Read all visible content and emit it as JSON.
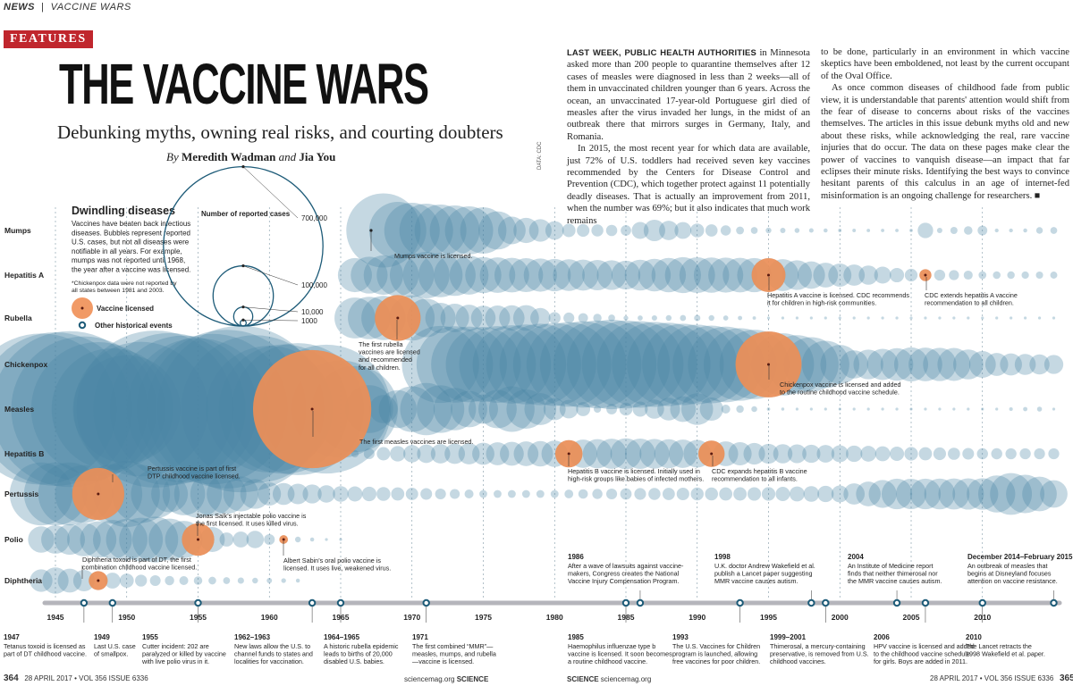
{
  "page": {
    "section_label": "NEWS",
    "section_name": "VACCINE WARS",
    "badge": "FEATURES",
    "title": "THE VACCINE WARS",
    "subtitle": "Debunking myths, owning real risks, and courting doubters",
    "byline_by": "By",
    "byline_author1": "Meredith Wadman",
    "byline_and": "and",
    "byline_author2": "Jia You",
    "data_credit": "DATA: CDC"
  },
  "intro": {
    "col1_lead": "LAST WEEK, PUBLIC HEALTH AUTHORITIES",
    "col1_p1": " in Minnesota asked more than 200 people to quarantine themselves after 12 cases of measles were diagnosed in less than 2 weeks—all of them in unvaccinated children younger than 6 years. Across the ocean, an unvaccinated 17-year-old Portuguese girl died of measles after the virus invaded her lungs, in the midst of an outbreak there that mirrors surges in Germany, Italy, and Romania.",
    "col1_p2": "In 2015, the most recent year for which data are available, just 72% of U.S. toddlers had received seven key vaccines recommended by the Centers for Disease Control and Prevention (CDC), which together protect against 11 potentially deadly diseases. That is actually an improvement from 2011, when the number was 69%; but it also indicates that much work remains",
    "col2_p1": "to be done, particularly in an environment in which vaccine skeptics have been emboldened, not least by the current occupant of the Oval Office.",
    "col2_p2": "As once common diseases of childhood fade from public view, it is understandable that parents' attention would shift from the fear of disease to concerns about risks of the vaccines themselves. The articles in this issue debunk myths old and new about these risks, while acknowledging the real, rare vaccine injuries that do occur. The data on these pages make clear the power of vaccines to vanquish disease—an impact that far eclipses their minute risks. Identifying the best ways to convince hesitant parents of this calculus in an age of internet-fed misinformation is an ongoing challenge for researchers. ■"
  },
  "legend": {
    "title": "Dwindling diseases",
    "desc": [
      "Vaccines have beaten back infectious",
      "diseases. Bubbles represent reported",
      "U.S. cases, but not all diseases were",
      "notifiable in all years. For example,",
      "mumps was not reported until 1968,",
      "the year after a vaccine was licensed."
    ],
    "footnote": [
      "*Chickenpox data were not reported by",
      "all states between 1981 and 2003."
    ],
    "vaccine_label": "Vaccine licensed",
    "event_label": "Other historical events",
    "size_title": "Number of reported cases",
    "size_values": [
      {
        "value": 700000,
        "label": "700,000"
      },
      {
        "value": 100000,
        "label": "100,000"
      },
      {
        "value": 10000,
        "label": "10,000"
      },
      {
        "value": 1000,
        "label": "1000"
      }
    ]
  },
  "colors": {
    "bubble": "#4a86a6",
    "vaccine": "#ef8f55",
    "vaccine_dot": "#5a1a10",
    "axis": "#b5b5bb",
    "event": "#1d5b78",
    "badge": "#c0262d",
    "dashed": "#7f97a5"
  },
  "chart_data": {
    "type": "scatter",
    "subtype": "bubble-timeline",
    "title": "Dwindling diseases",
    "size_label": "Number of reported cases",
    "x_ticks": [
      1945,
      1950,
      1955,
      1960,
      1965,
      1970,
      1975,
      1980,
      1985,
      1990,
      1995,
      2000,
      2005,
      2010
    ],
    "xlim": [
      1944,
      2015
    ],
    "series": [
      {
        "name": "Mumps",
        "start": 1968,
        "end": 2015,
        "keyframes": [
          [
            1968,
            152000
          ],
          [
            1969,
            90000
          ],
          [
            1972,
            74000
          ],
          [
            1975,
            59000
          ],
          [
            1977,
            21000
          ],
          [
            1979,
            14000
          ],
          [
            1981,
            4900
          ],
          [
            1985,
            3000
          ],
          [
            1987,
            12800
          ],
          [
            1990,
            5300
          ],
          [
            1993,
            1700
          ],
          [
            1995,
            900
          ],
          [
            2000,
            340
          ],
          [
            2005,
            310
          ],
          [
            2006,
            6600
          ],
          [
            2007,
            800
          ],
          [
            2010,
            2600
          ],
          [
            2011,
            400
          ],
          [
            2013,
            440
          ],
          [
            2014,
            1200
          ],
          [
            2015,
            1300
          ]
        ],
        "vaccine": [],
        "vaccine_notes": []
      },
      {
        "name": "Hepatitis A",
        "start": 1966,
        "end": 2015,
        "keyframes": [
          [
            1966,
            32000
          ],
          [
            1971,
            59600
          ],
          [
            1975,
            36000
          ],
          [
            1980,
            29000
          ],
          [
            1985,
            23000
          ],
          [
            1989,
            35800
          ],
          [
            1995,
            31600
          ],
          [
            1999,
            17000
          ],
          [
            2004,
            5700
          ],
          [
            2005,
            4500
          ],
          [
            2010,
            1670
          ],
          [
            2015,
            1390
          ]
        ],
        "vaccine": [
          1995,
          2006
        ],
        "vaccine_notes": [
          "Hepatitis A vaccine is licensed. CDC recommends it for children in high-risk communities.",
          "CDC extends hepatitis A vaccine recommendation to all children."
        ]
      },
      {
        "name": "Rubella",
        "start": 1966,
        "end": 2015,
        "keyframes": [
          [
            1966,
            46000
          ],
          [
            1969,
            57600
          ],
          [
            1970,
            56500
          ],
          [
            1972,
            25500
          ],
          [
            1975,
            16700
          ],
          [
            1978,
            18300
          ],
          [
            1980,
            3900
          ],
          [
            1985,
            630
          ],
          [
            1990,
            1100
          ],
          [
            1995,
            130
          ],
          [
            2000,
            170
          ],
          [
            2005,
            11
          ],
          [
            2015,
            5
          ]
        ],
        "vaccine": [
          1969
        ],
        "vaccine_notes": [
          "The first rubella vaccines are licensed and recommended for all children."
        ]
      },
      {
        "name": "Chickenpox",
        "start": 1972,
        "end": 2015,
        "keyframes": [
          [
            1972,
            164000
          ],
          [
            1975,
            155000
          ],
          [
            1980,
            190000
          ],
          [
            1984,
            221000
          ],
          [
            1988,
            192000
          ],
          [
            1992,
            158000
          ],
          [
            1995,
            120000
          ],
          [
            1998,
            82000
          ],
          [
            2001,
            22000
          ],
          [
            2005,
            32000
          ],
          [
            2008,
            30000
          ],
          [
            2011,
            14500
          ],
          [
            2015,
            10000
          ]
        ],
        "vaccine": [
          1995
        ],
        "vaccine_notes": [
          "Chickenpox vaccine is licensed and added to the routine childhood vaccine schedule."
        ]
      },
      {
        "name": "Measles",
        "start": 1944,
        "end": 2015,
        "keyframes": [
          [
            1944,
            630000
          ],
          [
            1946,
            670000
          ],
          [
            1950,
            320000
          ],
          [
            1952,
            680000
          ],
          [
            1955,
            555000
          ],
          [
            1958,
            763000
          ],
          [
            1960,
            442000
          ],
          [
            1962,
            481000
          ],
          [
            1963,
            385000
          ],
          [
            1964,
            458000
          ],
          [
            1965,
            262000
          ],
          [
            1966,
            204000
          ],
          [
            1967,
            63000
          ],
          [
            1968,
            22000
          ],
          [
            1971,
            75000
          ],
          [
            1975,
            24000
          ],
          [
            1977,
            57000
          ],
          [
            1980,
            13500
          ],
          [
            1983,
            1500
          ],
          [
            1986,
            6300
          ],
          [
            1989,
            18200
          ],
          [
            1990,
            27800
          ],
          [
            1992,
            2200
          ],
          [
            1995,
            309
          ],
          [
            2000,
            86
          ],
          [
            2005,
            66
          ],
          [
            2011,
            220
          ],
          [
            2014,
            667
          ],
          [
            2015,
            188
          ]
        ],
        "vaccine": [
          1963
        ],
        "vaccine_notes": [
          "The first measles vaccines are licensed."
        ]
      },
      {
        "name": "Hepatitis B",
        "start": 1966,
        "end": 2015,
        "keyframes": [
          [
            1966,
            1500
          ],
          [
            1970,
            8300
          ],
          [
            1975,
            13600
          ],
          [
            1980,
            19000
          ],
          [
            1985,
            26600
          ],
          [
            1990,
            21100
          ],
          [
            1995,
            10800
          ],
          [
            2000,
            8000
          ],
          [
            2005,
            5100
          ],
          [
            2010,
            3400
          ],
          [
            2015,
            3300
          ]
        ],
        "vaccine": [
          1981,
          1991
        ],
        "vaccine_notes": [
          "Hepatitis B vaccine is licensed. Initially used in high-risk groups like babies of infected mothers.",
          "CDC expands hepatitis B vaccine recommendation to all infants."
        ]
      },
      {
        "name": "Pertussis",
        "start": 1944,
        "end": 2015,
        "keyframes": [
          [
            1944,
            109000
          ],
          [
            1946,
            109000
          ],
          [
            1948,
            74700
          ],
          [
            1950,
            120700
          ],
          [
            1953,
            37100
          ],
          [
            1955,
            62800
          ],
          [
            1960,
            14800
          ],
          [
            1965,
            6800
          ],
          [
            1970,
            4250
          ],
          [
            1975,
            1700
          ],
          [
            1980,
            1730
          ],
          [
            1985,
            3600
          ],
          [
            1990,
            4570
          ],
          [
            1995,
            5100
          ],
          [
            2000,
            7900
          ],
          [
            2004,
            25800
          ],
          [
            2005,
            25600
          ],
          [
            2010,
            27500
          ],
          [
            2012,
            48300
          ],
          [
            2014,
            32900
          ],
          [
            2015,
            20800
          ]
        ],
        "vaccine": [
          1948
        ],
        "vaccine_notes": [
          "Pertussis vaccine is part of first DTP childhood vaccine licensed."
        ]
      },
      {
        "name": "Polio",
        "start": 1944,
        "end": 1965,
        "keyframes": [
          [
            1944,
            19000
          ],
          [
            1946,
            25700
          ],
          [
            1949,
            42000
          ],
          [
            1952,
            57800
          ],
          [
            1955,
            28900
          ],
          [
            1957,
            5500
          ],
          [
            1959,
            8400
          ],
          [
            1960,
            3200
          ],
          [
            1962,
            900
          ],
          [
            1963,
            450
          ],
          [
            1964,
            120
          ],
          [
            1965,
            70
          ]
        ],
        "vaccine": [
          1955,
          1961
        ],
        "vaccine_notes": [
          "Jonas Salk's injectable polio vaccine is the first licensed. It uses killed virus.",
          "Albert Sabin's oral polio vaccine is licensed. It uses live, weakened virus."
        ]
      },
      {
        "name": "Diphtheria",
        "start": 1944,
        "end": 1962,
        "keyframes": [
          [
            1944,
            14000
          ],
          [
            1945,
            19000
          ],
          [
            1947,
            12700
          ],
          [
            1949,
            7000
          ],
          [
            1951,
            3900
          ],
          [
            1953,
            2400
          ],
          [
            1955,
            1980
          ],
          [
            1957,
            1300
          ],
          [
            1959,
            930
          ],
          [
            1961,
            620
          ],
          [
            1962,
            440
          ]
        ],
        "vaccine": [
          1948
        ],
        "vaccine_notes": [
          "Diphtheria toxoid is part of DT, the first combination childhood vaccine licensed."
        ]
      }
    ],
    "top_events": [
      {
        "year_label": "1986",
        "text": [
          "After a wave of lawsuits against vaccine-",
          "makers, Congress creates the National",
          "Vaccine Injury Compensation Program."
        ],
        "year": 1986
      },
      {
        "year_label": "1998",
        "text": [
          "U.K. doctor Andrew Wakefield et al.",
          "publish a Lancet paper suggesting",
          "MMR vaccine causes autism."
        ],
        "year": 1998
      },
      {
        "year_label": "2004",
        "text": [
          "An Institute of Medicine report",
          "finds that neither thimerosal nor",
          "the MMR vaccine causes autism."
        ],
        "year": 2004
      },
      {
        "year_label": "December 2014–February 2015",
        "text": [
          "An outbreak of measles that",
          "begins at Disneyland focuses",
          "attention on vaccine resistance."
        ],
        "year": 2015
      }
    ],
    "bottom_events": [
      {
        "year_label": "1947",
        "text": [
          "Tetanus toxoid is licensed as",
          "part of DT childhood vaccine."
        ],
        "year": 1947
      },
      {
        "year_label": "1949",
        "text": [
          "Last U.S. case",
          "of smallpox."
        ],
        "year": 1949
      },
      {
        "year_label": "1955",
        "text": [
          "Cutter incident: 202 are",
          "paralyzed or killed by vaccine",
          "with live polio virus in it."
        ],
        "year": 1955
      },
      {
        "year_label": "1962–1963",
        "text": [
          "New laws allow the U.S. to",
          "channel funds to states and",
          "localities for vaccination."
        ],
        "year": 1963
      },
      {
        "year_label": "1964–1965",
        "text": [
          "A historic rubella epidemic",
          "leads to births of 20,000",
          "disabled U.S. babies."
        ],
        "year": 1965
      },
      {
        "year_label": "1971",
        "text": [
          "The first combined “MMR”—",
          "measles, mumps, and rubella",
          "—vaccine is licensed."
        ],
        "year": 1971
      },
      {
        "year_label": "1985",
        "text": [
          "Haemophilus influenzae type b",
          "vaccine is licensed. It soon becomes",
          "a routine childhood vaccine."
        ],
        "year": 1985
      },
      {
        "year_label": "1993",
        "text": [
          "The U.S. Vaccines for Children",
          "program is launched, allowing",
          "free vaccines for poor children."
        ],
        "year": 1993
      },
      {
        "year_label": "1999–2001",
        "text": [
          "Thimerosal, a mercury-containing",
          "preservative, is removed from U.S.",
          "childhood vaccines."
        ],
        "year": 1999
      },
      {
        "year_label": "2006",
        "text": [
          "HPV vaccine is licensed and added",
          "to the childhood vaccine schedule",
          "for girls. Boys are added in 2011."
        ],
        "year": 2006
      },
      {
        "year_label": "2010",
        "text": [
          "The Lancet retracts the",
          "1998 Wakefield et al. paper."
        ],
        "year": 2010
      }
    ],
    "extra_event_markers": [
      1986,
      1998,
      2004,
      2015
    ]
  },
  "footer": {
    "left_page": "364",
    "left_info": "28 APRIL 2017 • VOL 356 ISSUE 6336",
    "left_site": "sciencemag.org",
    "left_brand": "SCIENCE",
    "right_brand": "SCIENCE",
    "right_site": "sciencemag.org",
    "right_info": "28 APRIL 2017 • VOL 356 ISSUE 6336",
    "right_page": "365"
  }
}
